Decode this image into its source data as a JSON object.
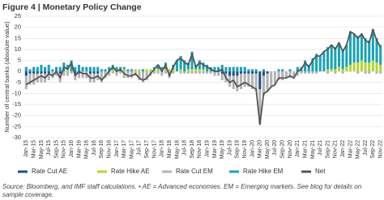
{
  "chart_data": {
    "type": "bar",
    "title": "Figure 4 | Monetary Policy Change",
    "y_label": "Number of central banks (absolute value)",
    "source": "Source: Bloomberg, and IMF staff calculations. • AE = Advanced economies. EM = Emerging markets. See blog for details on sample coverage.",
    "categories": [
      "Jan-15",
      null,
      "Mar-15",
      null,
      "May-15",
      null,
      "Jul-15",
      null,
      "Sep-15",
      null,
      "Nov-15",
      null,
      "Jan-16",
      null,
      "Mar-16",
      null,
      "May-16",
      null,
      "Jul-16",
      null,
      "Sep-16",
      null,
      "Nov-16",
      null,
      "Jan-17",
      null,
      "Mar-17",
      null,
      "May-17",
      null,
      "Jul-17",
      null,
      "Sep-17",
      null,
      "Nov-17",
      null,
      "Jan-18",
      null,
      "Mar-18",
      null,
      "May-18",
      null,
      "Jul-18",
      null,
      "Sep-18",
      null,
      "Nov-18",
      null,
      "Jan-19",
      null,
      "Mar-19",
      null,
      "May-19",
      null,
      "Jul-19",
      null,
      "Sep-19",
      null,
      "Nov-19",
      null,
      "Jan-20",
      null,
      "Mar-20",
      null,
      "May-20",
      null,
      "Jul-20",
      null,
      "Sep-20",
      null,
      "Nov-20",
      null,
      "Jan-21",
      null,
      "Mar-21",
      null,
      "May-21",
      null,
      "Jul-21",
      null,
      "Sep-21",
      null,
      "Nov-21",
      null,
      "Jan-22",
      null,
      "Mar-22",
      null,
      "May-22",
      null,
      "Jul-22",
      null,
      "Sep-22",
      null,
      "Nov-22"
    ],
    "series": [
      {
        "name": "Rate Cut AE",
        "color": "#1f4e8c",
        "values": [
          -2,
          -1,
          -1,
          -1,
          -1,
          -1,
          -1,
          0,
          0,
          -1,
          0,
          0,
          0,
          -1,
          -1,
          0,
          0,
          -1,
          -1,
          -1,
          0,
          0,
          0,
          0,
          0,
          0,
          0,
          0,
          0,
          0,
          0,
          0,
          0,
          0,
          0,
          0,
          0,
          0,
          0,
          0,
          0,
          0,
          0,
          0,
          0,
          0,
          0,
          0,
          0,
          0,
          0,
          0,
          -1,
          -1,
          -2,
          -2,
          -2,
          -1,
          -1,
          -1,
          -1,
          -1,
          -8,
          -2,
          -1,
          0,
          0,
          0,
          0,
          0,
          0,
          0,
          0,
          0,
          0,
          0,
          0,
          0,
          0,
          0,
          0,
          0,
          0,
          0,
          0,
          0,
          0,
          0,
          0,
          0,
          0,
          0,
          0,
          0,
          0
        ]
      },
      {
        "name": "Rate Hike AE",
        "color": "#b5d334",
        "values": [
          0,
          0,
          0,
          0,
          0,
          0,
          0,
          0,
          0,
          0,
          0,
          1,
          0,
          0,
          0,
          0,
          0,
          0,
          0,
          0,
          0,
          0,
          0,
          1,
          0,
          0,
          1,
          0,
          0,
          1,
          1,
          0,
          1,
          1,
          1,
          1,
          1,
          1,
          1,
          1,
          0,
          1,
          0,
          1,
          1,
          1,
          1,
          1,
          0,
          0,
          0,
          0,
          0,
          0,
          0,
          0,
          0,
          0,
          0,
          0,
          0,
          0,
          0,
          0,
          0,
          0,
          0,
          0,
          0,
          0,
          0,
          0,
          0,
          0,
          0,
          0,
          0,
          0,
          0,
          0,
          1,
          1,
          1,
          2,
          1,
          2,
          3,
          4,
          4,
          5,
          4,
          4,
          5,
          4,
          3
        ]
      },
      {
        "name": "Rate Cut EM",
        "color": "#b3b3b3",
        "values": [
          -6,
          -5,
          -5,
          -4,
          -4,
          -4,
          -3,
          -3,
          -2,
          -4,
          -2,
          -2,
          -1,
          -3,
          -2,
          -3,
          -3,
          -4,
          -4,
          -3,
          -5,
          -3,
          -2,
          -1,
          -2,
          -1,
          -3,
          -3,
          -3,
          -2,
          -4,
          -5,
          -4,
          -2,
          -1,
          -1,
          -2,
          -1,
          -3,
          -1,
          0,
          -1,
          -1,
          -1,
          -1,
          -1,
          -1,
          -1,
          -1,
          -1,
          -2,
          -2,
          -3,
          -4,
          -5,
          -6,
          -7,
          -7,
          -6,
          -6,
          -7,
          -8,
          -16,
          -9,
          -8,
          -7,
          -6,
          -4,
          -4,
          -3,
          -3,
          -3,
          -2,
          -1,
          -1,
          -1,
          -1,
          -1,
          0,
          0,
          -1,
          0,
          -1,
          0,
          -1,
          0,
          0,
          0,
          -1,
          0,
          -1,
          -1,
          0,
          -1,
          -1
        ]
      },
      {
        "name": "Rate Hike EM",
        "color": "#1aa3b5",
        "values": [
          2,
          1,
          2,
          2,
          3,
          2,
          3,
          1,
          2,
          2,
          4,
          2,
          5,
          2,
          3,
          2,
          2,
          2,
          2,
          2,
          1,
          1,
          2,
          2,
          2,
          2,
          1,
          1,
          1,
          0,
          0,
          1,
          0,
          0,
          1,
          2,
          1,
          3,
          0,
          2,
          5,
          6,
          5,
          3,
          8,
          2,
          4,
          3,
          3,
          2,
          2,
          2,
          3,
          2,
          2,
          2,
          2,
          2,
          2,
          1,
          1,
          1,
          0,
          1,
          0,
          0,
          0,
          1,
          1,
          0,
          1,
          0,
          2,
          2,
          5,
          3,
          6,
          8,
          7,
          9,
          10,
          11,
          10,
          11,
          9,
          10,
          15,
          13,
          12,
          12,
          11,
          10,
          14,
          11,
          9
        ]
      },
      {
        "name": "Net",
        "color": "#555555",
        "type": "line",
        "values": [
          -6,
          -5,
          -4,
          -3,
          -2,
          -3,
          -1,
          -2,
          0,
          -3,
          2,
          1,
          4,
          -2,
          0,
          -1,
          -1,
          -3,
          -3,
          -2,
          -4,
          -2,
          0,
          2,
          0,
          1,
          -1,
          -2,
          -2,
          -1,
          -3,
          -4,
          -3,
          -1,
          1,
          3,
          0,
          3,
          -2,
          2,
          5,
          6,
          4,
          3,
          8,
          2,
          4,
          3,
          2,
          1,
          0,
          0,
          1,
          -3,
          -5,
          -4,
          -7,
          -6,
          -5,
          -6,
          -7,
          -8,
          -24,
          -10,
          -9,
          -7,
          -6,
          -3,
          -3,
          -3,
          -2,
          -3,
          0,
          1,
          4,
          2,
          5,
          7,
          7,
          9,
          10,
          12,
          10,
          13,
          9,
          12,
          18,
          17,
          15,
          17,
          14,
          13,
          19,
          14,
          11
        ]
      }
    ],
    "ylim": [
      -30,
      25
    ],
    "yticks": [
      -30,
      -25,
      -20,
      -15,
      -10,
      -5,
      0,
      5,
      10,
      15,
      20,
      25
    ],
    "grid": true
  }
}
